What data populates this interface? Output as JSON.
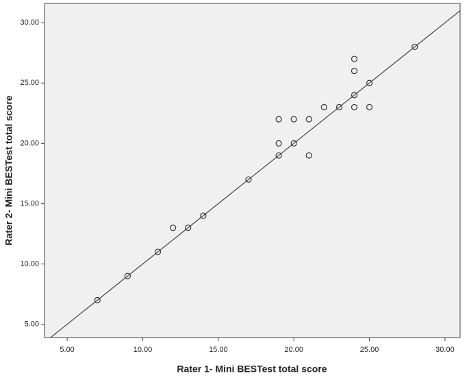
{
  "chart_data": {
    "type": "scatter",
    "x_label": "Rater 1- Mini BESTest total score",
    "y_label": "Rater 2- Mini BESTest total score",
    "x": [
      7,
      9,
      11,
      12,
      13,
      14,
      17,
      19,
      19,
      19,
      20,
      20,
      21,
      21,
      22,
      23,
      24,
      24,
      24,
      24,
      25,
      25,
      28
    ],
    "y": [
      7,
      9,
      11,
      13,
      13,
      14,
      17,
      22,
      20,
      19,
      22,
      20,
      22,
      19,
      23,
      23,
      27,
      26,
      24,
      23,
      25,
      23,
      28
    ],
    "color": "#333333",
    "fit_line": {
      "slope": 1,
      "intercept": 0
    },
    "xlim": [
      3.5,
      31
    ],
    "ylim": [
      3.9,
      31.6
    ],
    "xticks": [
      {
        "value": 5,
        "label": "5.00"
      },
      {
        "value": 10,
        "label": "10.00"
      },
      {
        "value": 15,
        "label": "15.00"
      },
      {
        "value": 20,
        "label": "20.00"
      },
      {
        "value": 25,
        "label": "25.00"
      },
      {
        "value": 30,
        "label": "30.00"
      }
    ],
    "yticks": [
      {
        "value": 5,
        "label": "5.00"
      },
      {
        "value": 10,
        "label": "10.00"
      },
      {
        "value": 15,
        "label": "15.00"
      },
      {
        "value": 20,
        "label": "20.00"
      },
      {
        "value": 25,
        "label": "25.00"
      },
      {
        "value": 30,
        "label": "30.00"
      }
    ]
  }
}
